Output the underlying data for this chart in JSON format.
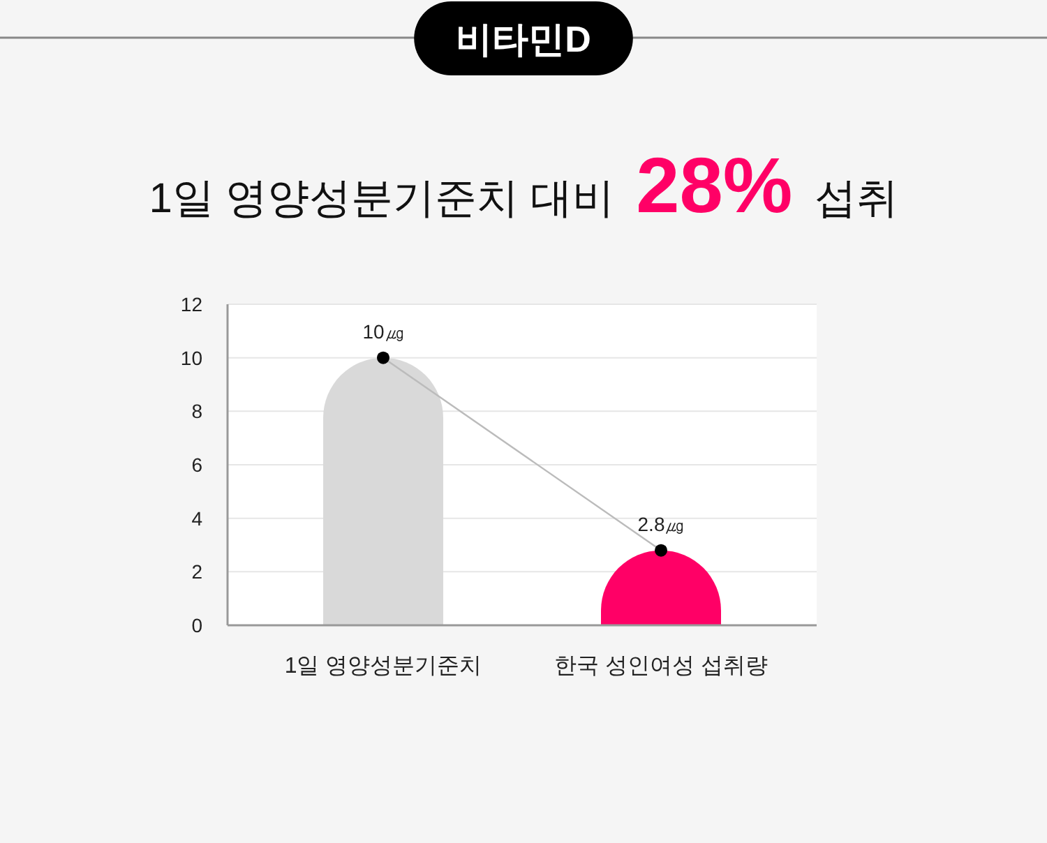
{
  "chart_data": {
    "type": "bar",
    "title": "비타민D",
    "subtitle": "1일 영양성분기준치 대비 28% 섭취",
    "categories": [
      "1일 영양성분기준치",
      "한국 성인여성 섭취량"
    ],
    "series": [
      {
        "colors": [
          "#d9d9d9",
          "#ff0066"
        ],
        "values": [
          10,
          2.8
        ]
      },
      {
        "type": "line",
        "color": "#bbbbbb",
        "values": [
          10,
          2.8
        ],
        "value_labels": [
          "10㎍",
          "2.8㎍"
        ]
      }
    ],
    "ylim": [
      0,
      12
    ],
    "yticks": [
      0,
      2,
      4,
      6,
      8,
      10,
      12
    ],
    "grid": "y",
    "marker": "circle"
  }
}
